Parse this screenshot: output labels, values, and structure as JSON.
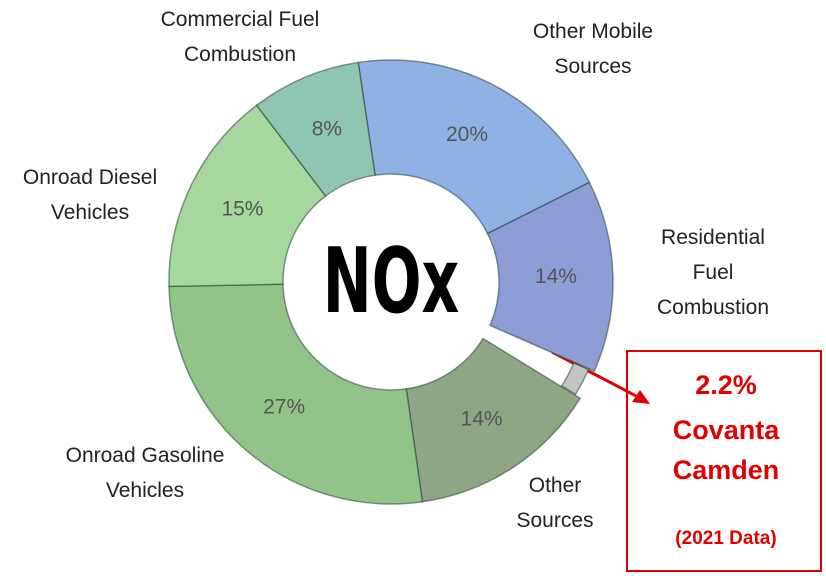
{
  "chart_data": {
    "type": "donut",
    "title": "NOx",
    "categories": [
      "Other Mobile Sources",
      "Residential Fuel Combustion",
      "Covanta Camden",
      "Other Sources",
      "Onroad Gasoline Vehicles",
      "Onroad Diesel Vehicles",
      "Commercial Fuel Combustion"
    ],
    "values": [
      20,
      14,
      2.2,
      14,
      27,
      15,
      8
    ],
    "value_labels": [
      "20%",
      "14%",
      "2.2%",
      "14%",
      "27%",
      "15%",
      "8%"
    ],
    "colors": [
      "#8fb1e4",
      "#8e9dd6",
      "#c4c4c4",
      "#8fa686",
      "#92c489",
      "#a6d89d",
      "#8fc6b2"
    ],
    "annotation": "(2021 Data)"
  }
}
